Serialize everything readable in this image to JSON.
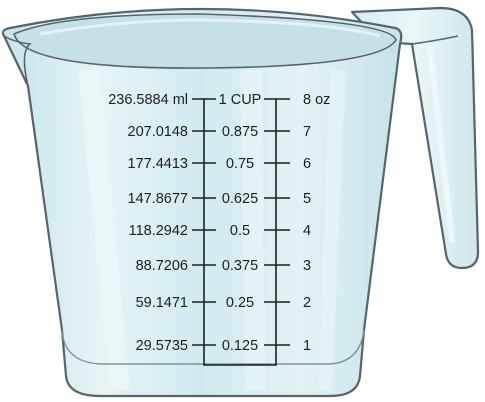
{
  "measuring_cup": {
    "ml_marks": [
      "236.5884 ml",
      "207.0148",
      "177.4413",
      "147.8677",
      "118.2942",
      "88.7206",
      "59.1471",
      "29.5735"
    ],
    "cup_marks": [
      "1 CUP",
      "0.875",
      "0.75",
      "0.625",
      "0.5",
      "0.375",
      "0.25",
      "0.125"
    ],
    "oz_marks": [
      "8 oz",
      "7",
      "6",
      "5",
      "4",
      "3",
      "2",
      "1"
    ],
    "colors": {
      "glass_fill": "#d3eaee",
      "glass_light": "#e8f5f7",
      "glass_outline": "#55666b",
      "rim_inner": "#c2e0e6",
      "scale_line": "#1e1e1e"
    }
  }
}
